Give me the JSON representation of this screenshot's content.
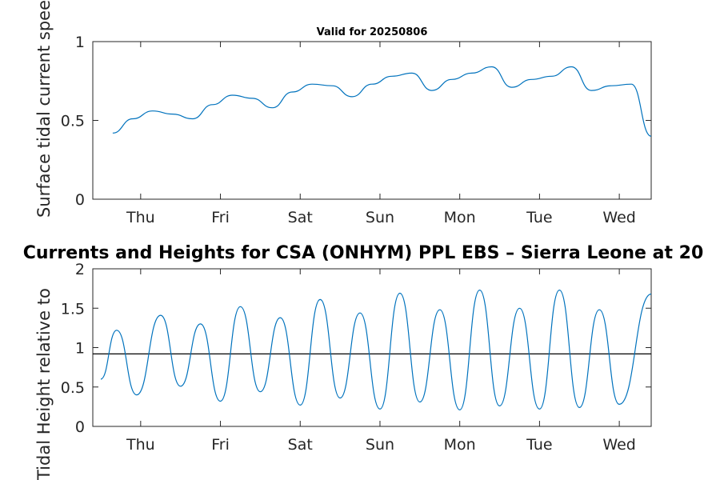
{
  "chart_data": [
    {
      "type": "line",
      "title": "Valid for 20250806",
      "ylabel": "Surface tidal current speed, kn",
      "xlabel": "",
      "xlim": [
        0,
        7
      ],
      "ylim": [
        0,
        1
      ],
      "yticks": [
        0,
        0.5,
        1
      ],
      "ytick_labels": [
        "0",
        "0.5",
        "1"
      ],
      "xticks": [
        0.6,
        1.6,
        2.6,
        3.6,
        4.6,
        5.6,
        6.6
      ],
      "xtick_labels": [
        "Thu",
        "Fri",
        "Sat",
        "Sun",
        "Mon",
        "Tue",
        "Wed"
      ],
      "grid": false,
      "line_color": "#0072bd",
      "series": [
        {
          "x": [
            0.25,
            0.5,
            0.75,
            1.0,
            1.25,
            1.5,
            1.75,
            2.0,
            2.25,
            2.5,
            2.75,
            3.0,
            3.25,
            3.5,
            3.75,
            4.0,
            4.25,
            4.5,
            4.75,
            5.0,
            5.25,
            5.5,
            5.75,
            6.0,
            6.25,
            6.5,
            6.75,
            7.0
          ],
          "y": [
            0.42,
            0.51,
            0.56,
            0.54,
            0.51,
            0.6,
            0.66,
            0.64,
            0.58,
            0.68,
            0.73,
            0.72,
            0.65,
            0.73,
            0.78,
            0.8,
            0.69,
            0.76,
            0.8,
            0.84,
            0.71,
            0.76,
            0.78,
            0.84,
            0.69,
            0.72,
            0.73,
            0.4
          ]
        }
      ]
    },
    {
      "type": "line",
      "title": "Currents and Heights for CSA (ONHYM) PPL EBS  – Sierra Leone at 20",
      "ylabel": "Tidal Height relative to",
      "xlabel": "",
      "xlim": [
        0,
        7
      ],
      "ylim": [
        0,
        2
      ],
      "yticks": [
        0,
        0.5,
        1,
        1.5,
        2
      ],
      "ytick_labels": [
        "0",
        "0.5",
        "1",
        "1.5",
        "2"
      ],
      "xticks": [
        0.6,
        1.6,
        2.6,
        3.6,
        4.6,
        5.6,
        6.6
      ],
      "xtick_labels": [
        "Thu",
        "Fri",
        "Sat",
        "Sun",
        "Mon",
        "Tue",
        "Wed"
      ],
      "grid": false,
      "line_color": "#0072bd",
      "reference_line": 0.92,
      "reference_color": "#000000",
      "series": [
        {
          "x": [
            0.1,
            0.3,
            0.55,
            0.85,
            1.1,
            1.35,
            1.6,
            1.85,
            2.1,
            2.35,
            2.6,
            2.85,
            3.1,
            3.35,
            3.6,
            3.85,
            4.1,
            4.35,
            4.6,
            4.85,
            5.1,
            5.35,
            5.6,
            5.85,
            6.1,
            6.35,
            6.6,
            7.0
          ],
          "y": [
            0.6,
            1.22,
            0.4,
            1.41,
            0.51,
            1.3,
            0.32,
            1.52,
            0.44,
            1.38,
            0.27,
            1.61,
            0.36,
            1.44,
            0.22,
            1.69,
            0.31,
            1.48,
            0.21,
            1.73,
            0.26,
            1.5,
            0.22,
            1.73,
            0.24,
            1.48,
            0.28,
            1.68
          ]
        }
      ]
    }
  ]
}
